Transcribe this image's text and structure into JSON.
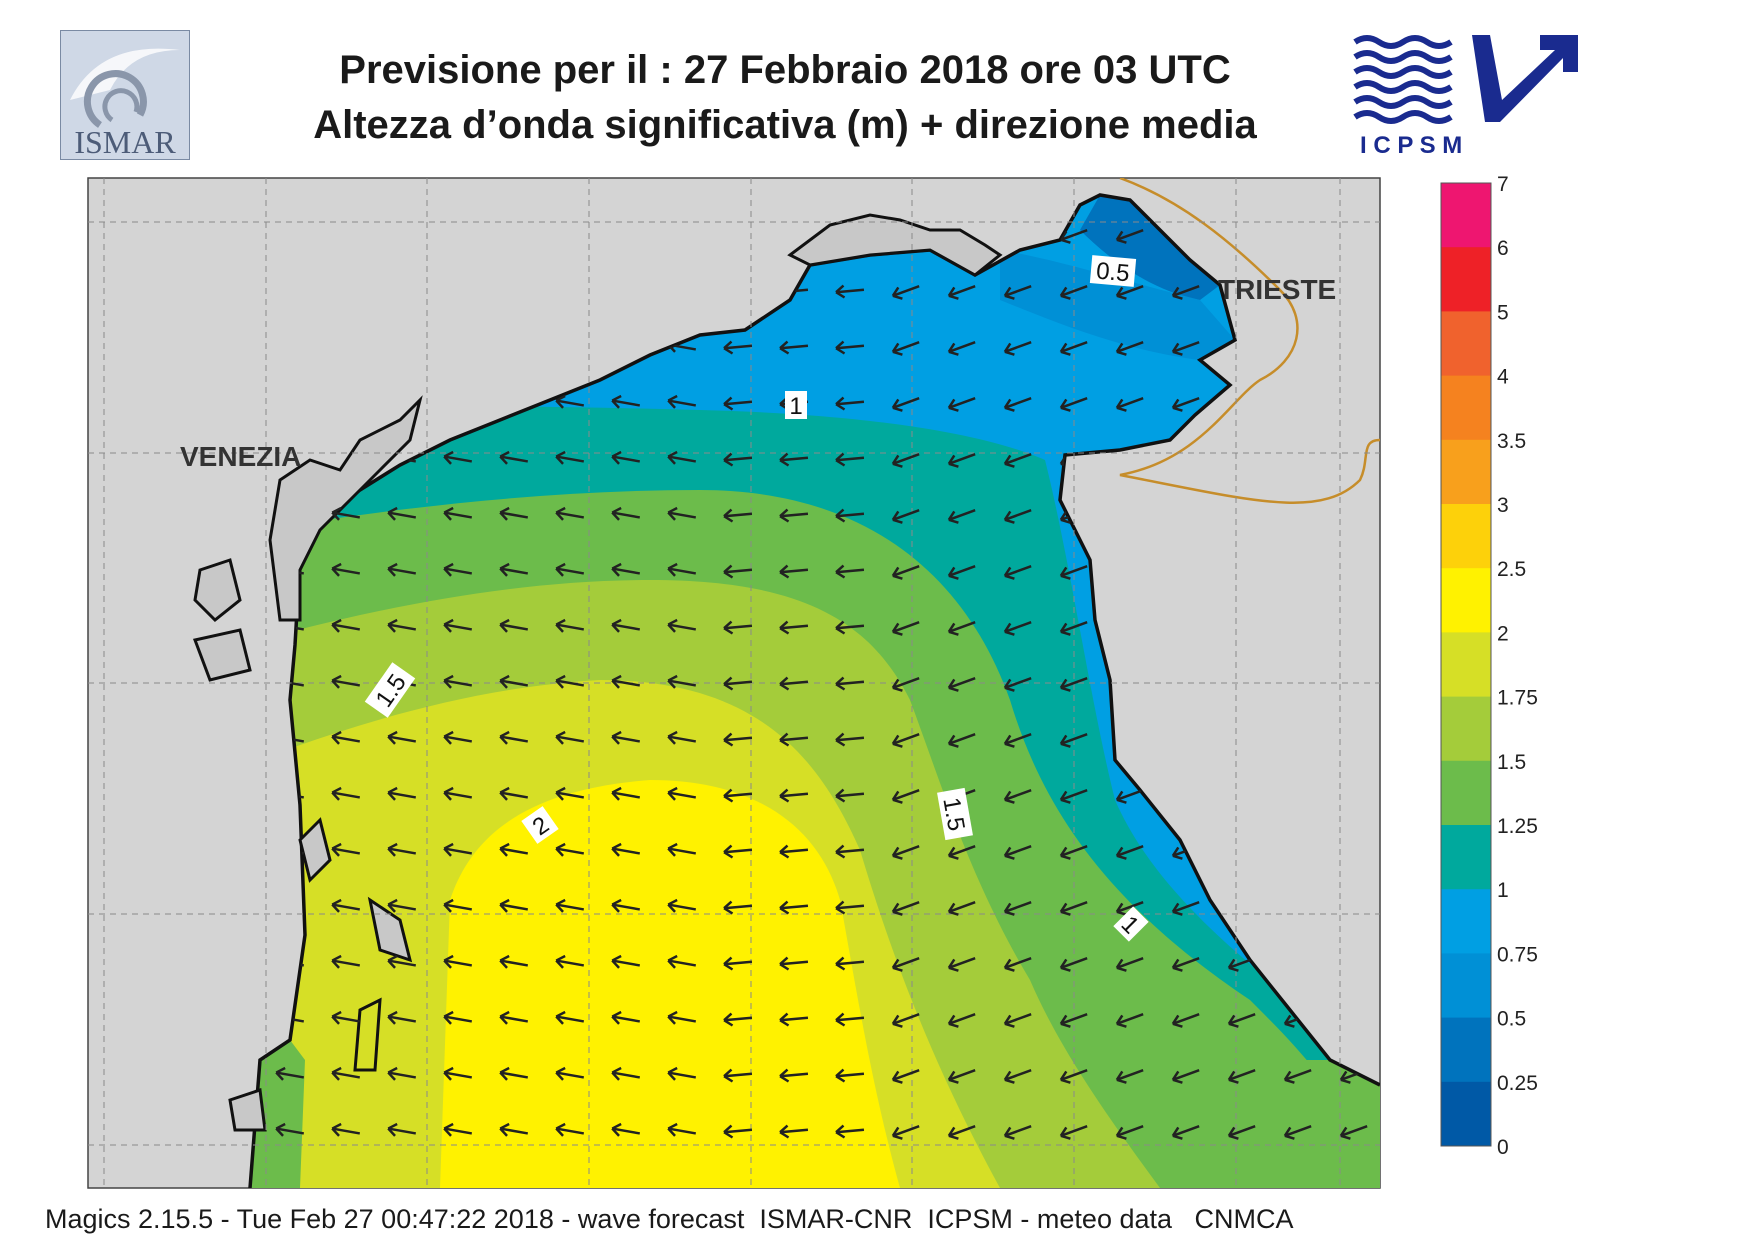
{
  "header": {
    "title_line1": "Previsione per il  :  27  Febbraio 2018   ore 03 UTC",
    "title_line2": "Altezza d’onda significativa (m) + direzione media"
  },
  "logos": {
    "left_text": "ISMAR",
    "right_text": "I C P S M"
  },
  "map": {
    "places": {
      "venezia": "VENEZIA",
      "trieste": "TRIESTE"
    },
    "contour_labels": [
      "0.5",
      "1",
      "1.5",
      "2",
      "1.5",
      "1"
    ],
    "land_color": "#d4d4d4",
    "arrow_direction": "south-west"
  },
  "colorbar": {
    "ticks": [
      "7",
      "6",
      "5",
      "4",
      "3.5",
      "3",
      "2.5",
      "2",
      "1.75",
      "1.5",
      "1.25",
      "1",
      "0.75",
      "0.5",
      "0.25",
      "0"
    ],
    "colors": [
      "#ee1670",
      "#ee2127",
      "#f0622d",
      "#f5821f",
      "#f8a01c",
      "#fdd10a",
      "#fff200",
      "#d6df26",
      "#a4cc3a",
      "#6cbc4b",
      "#00a99d",
      "#009fe3",
      "#0090d6",
      "#0073bd",
      "#0059a6"
    ]
  },
  "footer": {
    "text": "Magics 2.15.5 - Tue Feb 27 00:47:22 2018 - wave forecast  ISMAR-CNR  ICPSM - meteo data   CNMCA"
  }
}
